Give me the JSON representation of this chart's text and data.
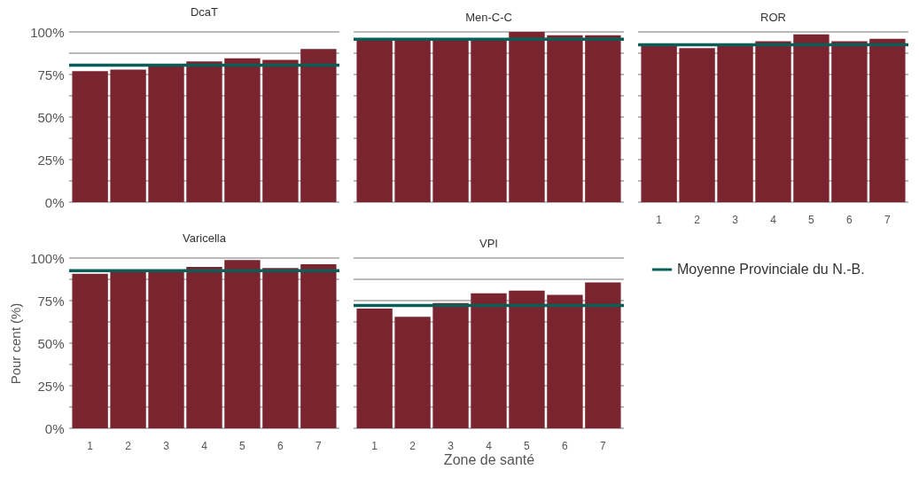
{
  "chart_data": [
    {
      "type": "bar",
      "title": "DcaT",
      "categories": [
        "1",
        "2",
        "3",
        "4",
        "5",
        "6",
        "7"
      ],
      "values": [
        77,
        77.9,
        80,
        82.7,
        84.5,
        83.6,
        90
      ],
      "color": "#7a2430",
      "ylim": [
        0,
        100
      ],
      "yticks": [
        {
          "value": 0,
          "label": "0%"
        },
        {
          "value": 12.5,
          "label": null
        },
        {
          "value": 25,
          "label": "25%"
        },
        {
          "value": 37.5,
          "label": null
        },
        {
          "value": 50,
          "label": "50%"
        },
        {
          "value": 62.5,
          "label": null
        },
        {
          "value": 75,
          "label": "75%"
        },
        {
          "value": 87.5,
          "label": null
        },
        {
          "value": 100,
          "label": "100%"
        }
      ],
      "grid": "y",
      "tick_labels": "y",
      "ref_lines": [
        {
          "axis": "y",
          "value": 80.5,
          "color": "#0b5e55"
        }
      ]
    },
    {
      "type": "bar",
      "title": "Men-C-C",
      "categories": [
        "1",
        "2",
        "3",
        "4",
        "5",
        "6",
        "7"
      ],
      "values": [
        95.5,
        95.5,
        95.5,
        95.5,
        100,
        98.1,
        98.1
      ],
      "color": "#7a2430",
      "ylim": [
        0,
        100
      ],
      "yticks": [
        {
          "value": 0,
          "label": null
        },
        {
          "value": 12.5,
          "label": null
        },
        {
          "value": 25,
          "label": null
        },
        {
          "value": 37.5,
          "label": null
        },
        {
          "value": 50,
          "label": null
        },
        {
          "value": 62.5,
          "label": null
        },
        {
          "value": 75,
          "label": null
        },
        {
          "value": 87.5,
          "label": null
        },
        {
          "value": 100,
          "label": null
        }
      ],
      "grid": "y",
      "tick_labels": false,
      "ref_lines": [
        {
          "axis": "y",
          "value": 95.7,
          "color": "#0b5e55"
        }
      ]
    },
    {
      "type": "bar",
      "title": "ROR",
      "categories": [
        "1",
        "2",
        "3",
        "4",
        "5",
        "6",
        "7"
      ],
      "values": [
        92,
        90.5,
        92,
        94.5,
        98.6,
        94.5,
        96
      ],
      "color": "#7a2430",
      "ylim": [
        0,
        100
      ],
      "yticks": [
        {
          "value": 0,
          "label": null
        },
        {
          "value": 12.5,
          "label": null
        },
        {
          "value": 25,
          "label": null
        },
        {
          "value": 37.5,
          "label": null
        },
        {
          "value": 50,
          "label": null
        },
        {
          "value": 62.5,
          "label": null
        },
        {
          "value": 75,
          "label": null
        },
        {
          "value": 87.5,
          "label": null
        },
        {
          "value": 100,
          "label": null
        }
      ],
      "grid": "y",
      "tick_labels": "x",
      "ref_lines": [
        {
          "axis": "y",
          "value": 92.4,
          "color": "#0b5e55"
        }
      ]
    },
    {
      "type": "bar",
      "title": "Varicella",
      "ylabel": "Pour cent (%)",
      "categories": [
        "1",
        "2",
        "3",
        "4",
        "5",
        "6",
        "7"
      ],
      "values": [
        90.7,
        92,
        92,
        94.8,
        98.8,
        94.1,
        96.4
      ],
      "color": "#7a2430",
      "ylim": [
        0,
        100
      ],
      "yticks": [
        {
          "value": 0,
          "label": "0%"
        },
        {
          "value": 12.5,
          "label": null
        },
        {
          "value": 25,
          "label": "25%"
        },
        {
          "value": 37.5,
          "label": null
        },
        {
          "value": 50,
          "label": "50%"
        },
        {
          "value": 62.5,
          "label": null
        },
        {
          "value": 75,
          "label": "75%"
        },
        {
          "value": 87.5,
          "label": null
        },
        {
          "value": 100,
          "label": "100%"
        }
      ],
      "grid": "y",
      "ref_lines": [
        {
          "axis": "y",
          "value": 92.6,
          "color": "#0b5e55"
        }
      ]
    },
    {
      "type": "bar",
      "title": "VPI",
      "xlabel": "Zone de santé",
      "categories": [
        "1",
        "2",
        "3",
        "4",
        "5",
        "6",
        "7"
      ],
      "values": [
        70.3,
        65.5,
        73.6,
        79.3,
        80.9,
        78.4,
        85.7
      ],
      "color": "#7a2430",
      "ylim": [
        0,
        100
      ],
      "yticks": [
        {
          "value": 0,
          "label": null
        },
        {
          "value": 12.5,
          "label": null
        },
        {
          "value": 25,
          "label": null
        },
        {
          "value": 37.5,
          "label": null
        },
        {
          "value": 50,
          "label": null
        },
        {
          "value": 62.5,
          "label": null
        },
        {
          "value": 75,
          "label": null
        },
        {
          "value": 87.5,
          "label": null
        },
        {
          "value": 100,
          "label": null
        }
      ],
      "grid": "y",
      "tick_labels": "x",
      "legend": "right",
      "ref_lines": [
        {
          "axis": "y",
          "value": 72.1,
          "label": "Moyenne Provinciale du N.-B.",
          "color": "#0b5e55"
        }
      ]
    }
  ]
}
